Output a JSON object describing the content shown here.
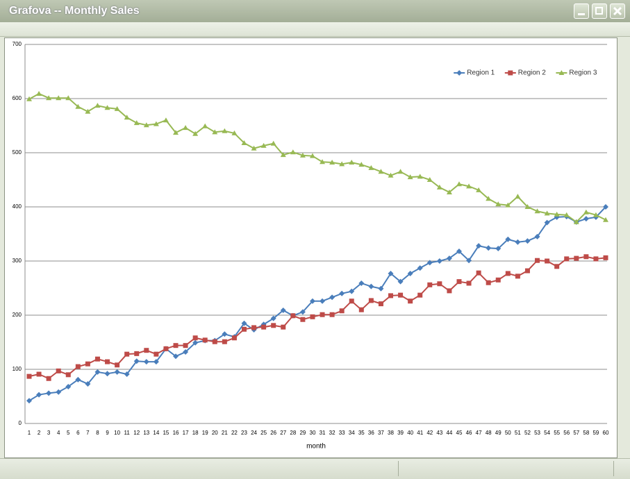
{
  "window": {
    "title": "Grafova -- Monthly Sales"
  },
  "chart_data": {
    "type": "line",
    "xlabel": "month",
    "categories": [
      1,
      2,
      3,
      4,
      5,
      6,
      7,
      8,
      9,
      10,
      11,
      12,
      13,
      14,
      15,
      16,
      17,
      18,
      19,
      20,
      21,
      22,
      23,
      24,
      25,
      26,
      27,
      28,
      29,
      30,
      31,
      32,
      33,
      34,
      35,
      36,
      37,
      38,
      39,
      40,
      41,
      42,
      43,
      44,
      45,
      46,
      47,
      48,
      49,
      50,
      51,
      52,
      53,
      54,
      55,
      56,
      57,
      58,
      59,
      60
    ],
    "ylim": [
      0,
      700
    ],
    "yticks": [
      0,
      100,
      200,
      300,
      400,
      500,
      600,
      700
    ],
    "grid": true,
    "legend": "upper right",
    "series": [
      {
        "name": "Region 1",
        "color": "#4a7ebb",
        "marker": "diamond",
        "values": [
          42,
          53,
          56,
          58,
          68,
          81,
          73,
          95,
          92,
          95,
          91,
          115,
          114,
          114,
          138,
          124,
          132,
          149,
          153,
          153,
          165,
          160,
          185,
          173,
          183,
          194,
          209,
          199,
          206,
          226,
          226,
          233,
          240,
          244,
          259,
          253,
          249,
          277,
          262,
          277,
          287,
          297,
          300,
          305,
          318,
          301,
          328,
          324,
          323,
          340,
          335,
          337,
          345,
          371,
          381,
          382,
          372,
          378,
          381,
          400
        ]
      },
      {
        "name": "Region 2",
        "color": "#be4b48",
        "marker": "square",
        "values": [
          87,
          91,
          83,
          97,
          90,
          105,
          110,
          119,
          114,
          108,
          128,
          129,
          135,
          128,
          138,
          144,
          144,
          158,
          154,
          151,
          151,
          158,
          174,
          177,
          178,
          181,
          178,
          199,
          192,
          197,
          201,
          201,
          208,
          226,
          210,
          227,
          221,
          236,
          237,
          226,
          237,
          256,
          258,
          245,
          262,
          259,
          278,
          260,
          265,
          277,
          272,
          282,
          301,
          300,
          290,
          304,
          305,
          308,
          304,
          306
        ]
      },
      {
        "name": "Region 3",
        "color": "#98b954",
        "marker": "triangle",
        "values": [
          599,
          609,
          601,
          601,
          601,
          585,
          576,
          587,
          583,
          581,
          565,
          555,
          551,
          553,
          560,
          537,
          546,
          535,
          549,
          538,
          540,
          536,
          518,
          508,
          513,
          517,
          496,
          501,
          495,
          494,
          483,
          482,
          479,
          482,
          478,
          472,
          465,
          458,
          465,
          455,
          456,
          450,
          436,
          427,
          442,
          438,
          431,
          415,
          405,
          403,
          419,
          400,
          392,
          388,
          386,
          385,
          372,
          390,
          385,
          376
        ]
      }
    ]
  }
}
